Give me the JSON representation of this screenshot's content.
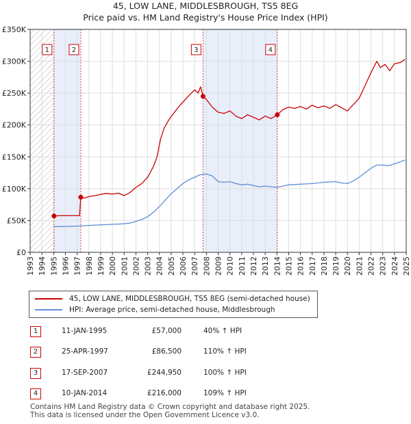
{
  "title": "45, LOW LANE, MIDDLESBROUGH, TS5 8EG",
  "subtitle": "Price paid vs. HM Land Registry's House Price Index (HPI)",
  "colors": {
    "property": "#cc0000",
    "hpi": "#5b8ed6",
    "shade": "#e8eefa",
    "grid": "#dddddd"
  },
  "chart_data": {
    "type": "line",
    "xlim": [
      1993,
      2025
    ],
    "ylim": [
      0,
      350000
    ],
    "yticks": [
      0,
      50000,
      100000,
      150000,
      200000,
      250000,
      300000,
      350000
    ],
    "ytick_labels": [
      "£0",
      "£50K",
      "£100K",
      "£150K",
      "£200K",
      "£250K",
      "£300K",
      "£350K"
    ],
    "xticks": [
      "1993",
      "1994",
      "1995",
      "1996",
      "1997",
      "1998",
      "1999",
      "2000",
      "2001",
      "2002",
      "2003",
      "2004",
      "2005",
      "2006",
      "2007",
      "2008",
      "2009",
      "2010",
      "2011",
      "2012",
      "2013",
      "2014",
      "2015",
      "2016",
      "2017",
      "2018",
      "2019",
      "2020",
      "2021",
      "2022",
      "2023",
      "2024",
      "2025"
    ],
    "series": [
      {
        "name": "45, LOW LANE, MIDDLESBROUGH, TS5 8EG (semi-detached house)",
        "color": "#cc0000",
        "points": [
          [
            1995.03,
            57000
          ],
          [
            1995.5,
            57500
          ],
          [
            1996.0,
            57500
          ],
          [
            1996.5,
            57500
          ],
          [
            1997.2,
            57500
          ],
          [
            1997.31,
            86500
          ],
          [
            1997.6,
            85000
          ],
          [
            1998.0,
            87500
          ],
          [
            1998.5,
            89000
          ],
          [
            1999.0,
            91000
          ],
          [
            1999.5,
            92500
          ],
          [
            2000.0,
            91500
          ],
          [
            2000.5,
            93000
          ],
          [
            2001.0,
            89000
          ],
          [
            2001.5,
            94000
          ],
          [
            2002.0,
            102000
          ],
          [
            2002.5,
            108000
          ],
          [
            2003.0,
            118000
          ],
          [
            2003.5,
            135000
          ],
          [
            2003.8,
            150000
          ],
          [
            2004.1,
            178000
          ],
          [
            2004.4,
            195000
          ],
          [
            2004.8,
            208000
          ],
          [
            2005.2,
            218000
          ],
          [
            2005.7,
            230000
          ],
          [
            2006.2,
            240000
          ],
          [
            2006.6,
            248000
          ],
          [
            2007.0,
            255000
          ],
          [
            2007.3,
            250000
          ],
          [
            2007.5,
            260000
          ],
          [
            2007.71,
            244950
          ],
          [
            2008.0,
            240000
          ],
          [
            2008.5,
            228000
          ],
          [
            2009.0,
            220000
          ],
          [
            2009.5,
            218000
          ],
          [
            2010.0,
            222000
          ],
          [
            2010.5,
            214000
          ],
          [
            2011.0,
            210000
          ],
          [
            2011.5,
            216000
          ],
          [
            2012.0,
            212000
          ],
          [
            2012.5,
            208000
          ],
          [
            2013.0,
            214000
          ],
          [
            2013.5,
            210000
          ],
          [
            2014.03,
            216000
          ],
          [
            2014.5,
            224000
          ],
          [
            2015.0,
            228000
          ],
          [
            2015.5,
            226000
          ],
          [
            2016.0,
            229000
          ],
          [
            2016.5,
            225000
          ],
          [
            2017.0,
            231000
          ],
          [
            2017.5,
            227000
          ],
          [
            2018.0,
            230000
          ],
          [
            2018.5,
            226000
          ],
          [
            2019.0,
            232000
          ],
          [
            2019.5,
            227000
          ],
          [
            2020.0,
            222000
          ],
          [
            2020.5,
            232000
          ],
          [
            2021.0,
            242000
          ],
          [
            2021.5,
            262000
          ],
          [
            2022.0,
            282000
          ],
          [
            2022.5,
            300000
          ],
          [
            2022.8,
            290000
          ],
          [
            2023.2,
            295000
          ],
          [
            2023.6,
            285000
          ],
          [
            2024.0,
            296000
          ],
          [
            2024.5,
            298000
          ],
          [
            2024.9,
            303000
          ]
        ]
      },
      {
        "name": "HPI: Average price, semi-detached house, Middlesbrough",
        "color": "#5b8ed6",
        "points": [
          [
            1995.0,
            40500
          ],
          [
            1995.5,
            40500
          ],
          [
            1996.0,
            40700
          ],
          [
            1996.5,
            41000
          ],
          [
            1997.0,
            41200
          ],
          [
            1997.5,
            41800
          ],
          [
            1998.0,
            42200
          ],
          [
            1998.5,
            42800
          ],
          [
            1999.0,
            43200
          ],
          [
            1999.5,
            43500
          ],
          [
            2000.0,
            44000
          ],
          [
            2000.5,
            44300
          ],
          [
            2001.0,
            45000
          ],
          [
            2001.5,
            46000
          ],
          [
            2002.0,
            48500
          ],
          [
            2002.5,
            51500
          ],
          [
            2003.0,
            56000
          ],
          [
            2003.5,
            63000
          ],
          [
            2004.0,
            72000
          ],
          [
            2004.5,
            82000
          ],
          [
            2005.0,
            92000
          ],
          [
            2005.5,
            100000
          ],
          [
            2006.0,
            108000
          ],
          [
            2006.5,
            114000
          ],
          [
            2007.0,
            118000
          ],
          [
            2007.5,
            122000
          ],
          [
            2008.0,
            123000
          ],
          [
            2008.5,
            120000
          ],
          [
            2009.0,
            111000
          ],
          [
            2009.5,
            110000
          ],
          [
            2010.0,
            111000
          ],
          [
            2010.5,
            108000
          ],
          [
            2011.0,
            106000
          ],
          [
            2011.5,
            107000
          ],
          [
            2012.0,
            105000
          ],
          [
            2012.5,
            103000
          ],
          [
            2013.0,
            104000
          ],
          [
            2013.5,
            103000
          ],
          [
            2014.0,
            102000
          ],
          [
            2014.5,
            104000
          ],
          [
            2015.0,
            106000
          ],
          [
            2015.5,
            106500
          ],
          [
            2016.0,
            107000
          ],
          [
            2016.5,
            107500
          ],
          [
            2017.0,
            108000
          ],
          [
            2017.5,
            109000
          ],
          [
            2018.0,
            110000
          ],
          [
            2018.5,
            110500
          ],
          [
            2019.0,
            111000
          ],
          [
            2019.5,
            109000
          ],
          [
            2020.0,
            108000
          ],
          [
            2020.5,
            112000
          ],
          [
            2021.0,
            118000
          ],
          [
            2021.5,
            125000
          ],
          [
            2022.0,
            132000
          ],
          [
            2022.5,
            137000
          ],
          [
            2023.0,
            137000
          ],
          [
            2023.5,
            136000
          ],
          [
            2024.0,
            139000
          ],
          [
            2024.5,
            142000
          ],
          [
            2024.9,
            145000
          ]
        ]
      }
    ],
    "sales": [
      {
        "label": "1",
        "x": 1995.03,
        "price": 57000
      },
      {
        "label": "2",
        "x": 1997.31,
        "price": 86500
      },
      {
        "label": "3",
        "x": 2007.71,
        "price": 244950
      },
      {
        "label": "4",
        "x": 2014.03,
        "price": 216000
      }
    ],
    "shaded_ranges": [
      [
        1995.03,
        1997.31
      ],
      [
        2007.71,
        2014.03
      ]
    ],
    "hatched_range": [
      1993,
      1995.03
    ]
  },
  "legend": {
    "property_label": "45, LOW LANE, MIDDLESBROUGH, TS5 8EG (semi-detached house)",
    "hpi_label": "HPI: Average price, semi-detached house, Middlesbrough"
  },
  "transactions": [
    {
      "num": "1",
      "date": "11-JAN-1995",
      "price": "£57,000",
      "hpi": "40% ↑ HPI"
    },
    {
      "num": "2",
      "date": "25-APR-1997",
      "price": "£86,500",
      "hpi": "110% ↑ HPI"
    },
    {
      "num": "3",
      "date": "17-SEP-2007",
      "price": "£244,950",
      "hpi": "100% ↑ HPI"
    },
    {
      "num": "4",
      "date": "10-JAN-2014",
      "price": "£216,000",
      "hpi": "109% ↑ HPI"
    }
  ],
  "footer": {
    "line1": "Contains HM Land Registry data © Crown copyright and database right 2025.",
    "line2": "This data is licensed under the Open Government Licence v3.0."
  }
}
